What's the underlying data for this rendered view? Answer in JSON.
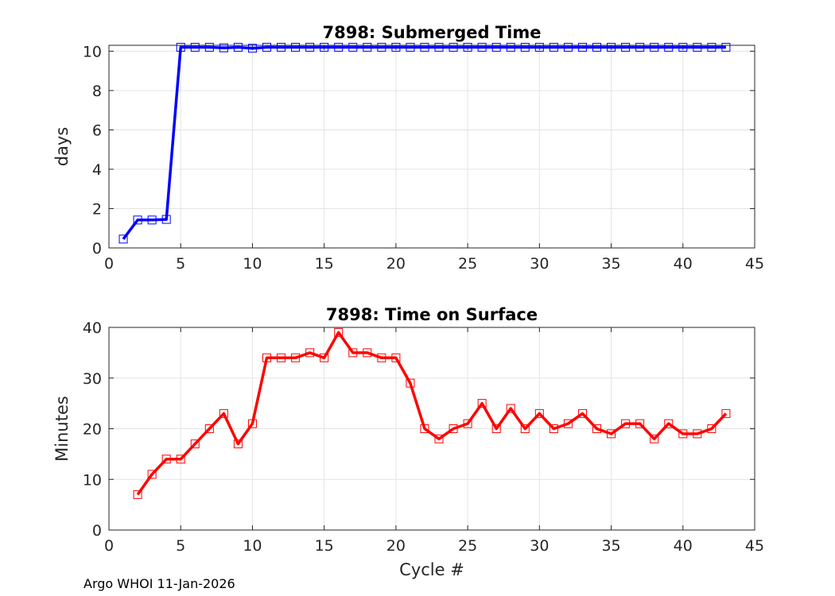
{
  "footer": "Argo WHOI 11-Jan-2026",
  "chart_data": [
    {
      "type": "line",
      "title": "7898: Submerged Time",
      "xlabel": "",
      "ylabel": "days",
      "xlim": [
        0,
        45
      ],
      "ylim": [
        0,
        10.3
      ],
      "xticks": [
        0,
        5,
        10,
        15,
        20,
        25,
        30,
        35,
        40,
        45
      ],
      "yticks": [
        0,
        2,
        4,
        6,
        8,
        10
      ],
      "grid": true,
      "series": [
        {
          "name": "Submerged Time",
          "color": "#0000ff",
          "marker": "square",
          "x": [
            1,
            2,
            3,
            4,
            5,
            6,
            7,
            8,
            9,
            10,
            11,
            12,
            13,
            14,
            15,
            16,
            17,
            18,
            19,
            20,
            21,
            22,
            23,
            24,
            25,
            26,
            27,
            28,
            29,
            30,
            31,
            32,
            33,
            34,
            35,
            36,
            37,
            38,
            39,
            40,
            41,
            42,
            43
          ],
          "values": [
            0.45,
            1.42,
            1.42,
            1.45,
            10.2,
            10.2,
            10.2,
            10.17,
            10.2,
            10.15,
            10.2,
            10.2,
            10.2,
            10.2,
            10.2,
            10.2,
            10.2,
            10.2,
            10.2,
            10.2,
            10.2,
            10.2,
            10.2,
            10.2,
            10.2,
            10.2,
            10.2,
            10.2,
            10.2,
            10.2,
            10.2,
            10.2,
            10.2,
            10.2,
            10.2,
            10.2,
            10.2,
            10.2,
            10.2,
            10.2,
            10.2,
            10.2,
            10.2
          ]
        }
      ]
    },
    {
      "type": "line",
      "title": "7898: Time on Surface",
      "xlabel": "Cycle #",
      "ylabel": "Minutes",
      "xlim": [
        0,
        45
      ],
      "ylim": [
        0,
        40
      ],
      "xticks": [
        0,
        5,
        10,
        15,
        20,
        25,
        30,
        35,
        40,
        45
      ],
      "yticks": [
        0,
        10,
        20,
        30,
        40
      ],
      "grid": true,
      "series": [
        {
          "name": "Time on Surface",
          "color": "#ff0000",
          "marker": "square",
          "x": [
            2,
            3,
            4,
            5,
            6,
            7,
            8,
            9,
            10,
            11,
            12,
            13,
            14,
            15,
            16,
            17,
            18,
            19,
            20,
            21,
            22,
            23,
            24,
            25,
            26,
            27,
            28,
            29,
            30,
            31,
            32,
            33,
            34,
            35,
            36,
            37,
            38,
            39,
            40,
            41,
            42,
            43
          ],
          "values": [
            7,
            11,
            14,
            14,
            17,
            20,
            23,
            17,
            21,
            34,
            34,
            34,
            35,
            34,
            39,
            35,
            35,
            34,
            34,
            29,
            20,
            18,
            20,
            21,
            25,
            20,
            24,
            20,
            23,
            20,
            21,
            23,
            20,
            19,
            21,
            21,
            18,
            21,
            19,
            19,
            20,
            23
          ]
        }
      ]
    }
  ]
}
